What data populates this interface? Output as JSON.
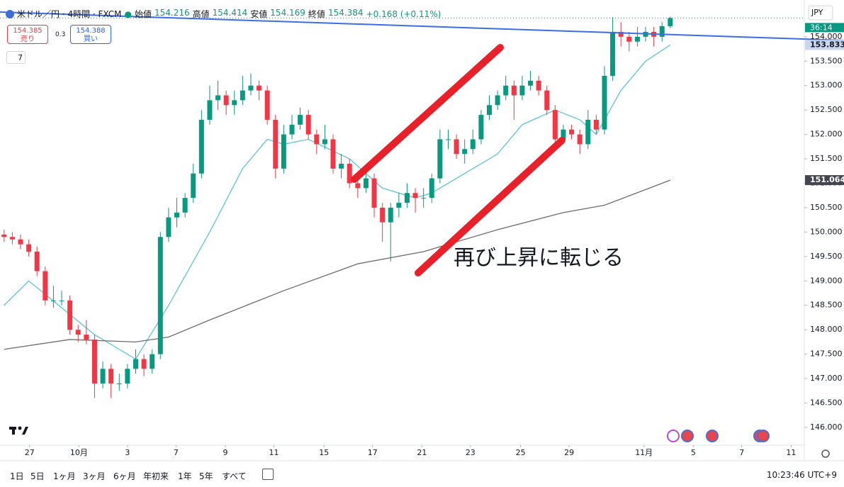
{
  "header": {
    "symbol": "米ドル／円 · 4時間 · FXCM",
    "ohlc": [
      {
        "label": "始値",
        "value": "154.216"
      },
      {
        "label": "高値",
        "value": "154.414"
      },
      {
        "label": "安値",
        "value": "154.169"
      },
      {
        "label": "終値",
        "value": "154.384"
      }
    ],
    "change": "+0.168 (+0.11%)",
    "sell": {
      "price": "154.385",
      "label": "売り"
    },
    "spread": "0.3",
    "buy": {
      "price": "154.388",
      "label": "買い"
    },
    "indicators": "7",
    "currency": "JPY"
  },
  "toolbar": {
    "ranges": [
      "1日",
      "5日",
      "1ヶ月",
      "3ヶ月",
      "6ヶ月",
      "年初来",
      "1年",
      "5年",
      "すべて"
    ],
    "time": "10:23:46 UTC+9"
  },
  "chart_data": {
    "type": "candlestick",
    "grid": false,
    "up_color": "#089981",
    "down_color": "#f23645",
    "annotation": "再び上昇に転じる",
    "countdown": "36:14",
    "open": [
      149.95,
      149.9,
      149.85,
      149.75,
      149.6,
      149.2,
      148.6,
      148.6,
      148.6,
      148.0,
      147.9,
      147.8,
      146.9,
      147.2,
      146.9,
      146.9,
      147.2,
      147.4,
      147.2,
      147.5,
      149.9,
      150.3,
      150.4,
      150.7,
      151.2,
      152.3,
      152.7,
      152.8,
      152.6,
      152.7,
      152.9,
      153.0,
      152.9,
      152.3,
      151.3,
      152.0,
      152.2,
      152.4,
      152.0,
      151.8,
      151.9,
      151.3,
      151.4,
      151.0,
      150.9,
      151.1,
      150.5,
      150.2,
      150.5,
      150.6,
      150.8,
      150.7,
      150.7,
      151.1,
      151.9,
      151.9,
      151.6,
      151.7,
      151.9,
      152.4,
      152.6,
      152.8,
      153.0,
      152.8,
      153.0,
      153.1,
      152.9,
      152.5,
      151.9,
      152.1,
      152.0,
      151.8,
      152.3,
      152.1,
      153.2,
      154.1,
      154.0,
      153.9,
      154.0,
      154.1,
      154.0,
      154.216
    ],
    "high": [
      150.05,
      150.0,
      149.95,
      149.85,
      149.7,
      149.3,
      148.9,
      148.8,
      148.7,
      148.1,
      148.2,
      147.9,
      147.35,
      147.3,
      147.1,
      147.3,
      147.6,
      147.5,
      147.6,
      150.0,
      150.5,
      150.7,
      150.8,
      151.4,
      152.5,
      153.0,
      153.1,
      152.9,
      152.9,
      153.2,
      153.25,
      153.1,
      153.0,
      152.4,
      152.2,
      152.4,
      152.55,
      152.5,
      152.1,
      152.2,
      152.0,
      151.6,
      151.5,
      151.2,
      151.3,
      151.2,
      150.6,
      150.6,
      150.8,
      151.0,
      150.9,
      150.9,
      151.2,
      152.1,
      152.1,
      152.0,
      151.9,
      152.1,
      152.5,
      152.8,
      152.9,
      153.2,
      153.1,
      153.2,
      153.3,
      153.2,
      153.0,
      152.6,
      152.2,
      152.2,
      152.1,
      152.5,
      152.4,
      153.4,
      154.4,
      154.3,
      154.1,
      154.2,
      154.2,
      154.2,
      154.3,
      154.414
    ],
    "low": [
      149.8,
      149.75,
      149.65,
      149.5,
      149.1,
      148.5,
      148.45,
      148.5,
      147.9,
      147.75,
      147.7,
      146.6,
      146.8,
      146.6,
      146.75,
      146.8,
      147.1,
      147.05,
      147.1,
      147.4,
      149.8,
      150.1,
      150.3,
      150.6,
      151.1,
      152.2,
      152.5,
      152.4,
      152.4,
      152.6,
      152.8,
      152.7,
      152.2,
      151.1,
      151.2,
      151.9,
      152.1,
      151.9,
      151.6,
      151.7,
      151.2,
      151.1,
      150.9,
      150.7,
      150.8,
      150.3,
      149.8,
      149.4,
      150.3,
      150.5,
      150.4,
      150.5,
      150.6,
      151.0,
      151.7,
      151.5,
      151.4,
      151.6,
      151.8,
      152.3,
      152.5,
      152.7,
      152.3,
      152.7,
      152.9,
      152.8,
      152.4,
      151.8,
      151.8,
      151.9,
      151.6,
      151.7,
      152.0,
      152.0,
      153.1,
      153.8,
      153.7,
      153.8,
      153.9,
      153.8,
      153.9,
      154.169
    ],
    "close": [
      149.9,
      149.85,
      149.75,
      149.6,
      149.2,
      148.6,
      148.6,
      148.6,
      148.0,
      147.9,
      147.8,
      146.9,
      147.2,
      146.9,
      146.9,
      147.2,
      147.4,
      147.2,
      147.5,
      149.9,
      150.3,
      150.4,
      150.7,
      151.2,
      152.3,
      152.7,
      152.8,
      152.6,
      152.7,
      152.9,
      153.0,
      152.9,
      152.3,
      151.3,
      152.0,
      152.2,
      152.4,
      152.0,
      151.8,
      151.9,
      151.3,
      151.4,
      151.0,
      150.9,
      151.1,
      150.5,
      150.2,
      150.5,
      150.6,
      150.8,
      150.7,
      150.7,
      151.1,
      151.9,
      151.9,
      151.6,
      151.7,
      151.9,
      152.4,
      152.6,
      152.8,
      153.0,
      152.8,
      153.0,
      153.1,
      152.9,
      152.5,
      151.9,
      152.1,
      152.0,
      151.8,
      152.3,
      152.1,
      153.2,
      154.1,
      154.0,
      153.9,
      154.0,
      154.1,
      154.0,
      154.216,
      154.384
    ],
    "overlays": [
      {
        "color": "#5ec4d4",
        "x": [
          0,
          3,
          11,
          16,
          20,
          25,
          29,
          32,
          34,
          37,
          42,
          46,
          50,
          52,
          56,
          60,
          63,
          67,
          70,
          72,
          75,
          78,
          81
        ],
        "values": [
          148.5,
          149.0,
          147.9,
          147.4,
          148.5,
          150.0,
          151.3,
          151.9,
          151.8,
          151.9,
          151.5,
          150.9,
          150.7,
          150.8,
          151.2,
          151.6,
          152.2,
          152.5,
          152.3,
          152.0,
          152.9,
          153.5,
          153.833
        ]
      },
      {
        "color": "#6b6b6b",
        "x": [
          0,
          8,
          16,
          20,
          25,
          34,
          43,
          51,
          60,
          68,
          73,
          81
        ],
        "values": [
          147.6,
          147.8,
          147.75,
          147.85,
          148.2,
          148.8,
          149.35,
          149.6,
          150.05,
          150.4,
          150.55,
          151.064
        ]
      }
    ],
    "price_labels": [
      {
        "value": 153.833,
        "label": "153.833"
      },
      {
        "value": 151.064,
        "label": "151.064"
      }
    ],
    "xlim": [
      -0.5,
      97.3
    ],
    "xticks": [
      {
        "value": 3.1,
        "label": "27"
      },
      {
        "value": 9.1,
        "label": "10月"
      },
      {
        "value": 15,
        "label": "3"
      },
      {
        "value": 20.9,
        "label": "7"
      },
      {
        "value": 26.9,
        "label": "9"
      },
      {
        "value": 32.8,
        "label": "11"
      },
      {
        "value": 38.9,
        "label": "15"
      },
      {
        "value": 44.8,
        "label": "17"
      },
      {
        "value": 50.8,
        "label": "21"
      },
      {
        "value": 56.7,
        "label": "23"
      },
      {
        "value": 62.8,
        "label": "25"
      },
      {
        "value": 68.7,
        "label": "29"
      },
      {
        "value": 77.8,
        "label": "11月"
      },
      {
        "value": 83.8,
        "label": "5"
      },
      {
        "value": 89.7,
        "label": "7"
      },
      {
        "value": 95.7,
        "label": "11"
      }
    ],
    "ylim": [
      145.68,
      154.68
    ],
    "yticks": [
      {
        "value": 146,
        "label": "146.000"
      },
      {
        "value": 146.5,
        "label": "146.500"
      },
      {
        "value": 147,
        "label": "147.000"
      },
      {
        "value": 147.5,
        "label": "147.500"
      },
      {
        "value": 148,
        "label": "148.000"
      },
      {
        "value": 148.5,
        "label": "148.500"
      },
      {
        "value": 149,
        "label": "149.000"
      },
      {
        "value": 149.5,
        "label": "149.500"
      },
      {
        "value": 150,
        "label": "150.000"
      },
      {
        "value": 150.5,
        "label": "150.500"
      },
      {
        "value": 151,
        "label": "151.000"
      },
      {
        "value": 151.5,
        "label": "151.500"
      },
      {
        "value": 152,
        "label": "152.000"
      },
      {
        "value": 152.5,
        "label": "152.500"
      },
      {
        "value": 153,
        "label": "153.000"
      },
      {
        "value": 153.5,
        "label": "153.500"
      },
      {
        "value": 154,
        "label": "154.000"
      }
    ]
  }
}
